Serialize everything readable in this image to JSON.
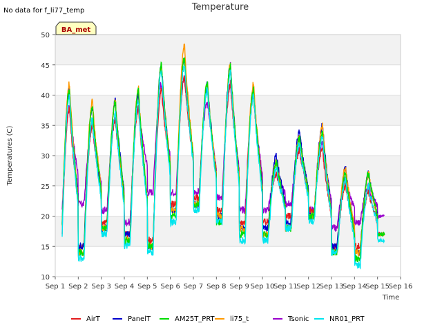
{
  "no_data_note": "No data for f_li77_temp",
  "badge": "BA_met",
  "chart_data": {
    "type": "line",
    "title": "Temperature",
    "xlabel": "Time",
    "ylabel": "Temperatures (C)",
    "ylim": [
      10,
      50
    ],
    "xlim": [
      1,
      16
    ],
    "yticks": [
      10,
      15,
      20,
      25,
      30,
      35,
      40,
      45,
      50
    ],
    "xticks": [
      "Sep 1",
      "Sep 2",
      "Sep 3",
      "Sep 4",
      "Sep 5",
      "Sep 6",
      "Sep 7",
      "Sep 8",
      "Sep 9",
      "Sep 10",
      "Sep 11",
      "Sep 12",
      "Sep 13",
      "Sep 14",
      "Sep 15",
      "Sep 16"
    ],
    "grid": true,
    "legend_position": "bottom",
    "days": {
      "min": [
        12,
        14,
        18,
        16,
        15,
        20,
        22,
        19,
        17,
        17,
        18,
        20,
        14,
        13,
        17
      ],
      "max": [
        40,
        38,
        37,
        39,
        44,
        45,
        41,
        44,
        41,
        29,
        33,
        34,
        27,
        26,
        17
      ]
    },
    "series": [
      {
        "name": "AirT",
        "color": "#e31a1c",
        "min": [
          12,
          15,
          19,
          17,
          16,
          22,
          23,
          21,
          19,
          19,
          20,
          21,
          15,
          15,
          17
        ],
        "max": [
          38,
          35,
          36,
          38,
          41,
          43,
          41,
          42,
          40,
          27,
          31,
          31,
          25,
          24,
          17
        ]
      },
      {
        "name": "PanelT",
        "color": "#0000cc",
        "min": [
          13,
          15,
          18,
          17,
          15,
          21,
          22,
          20,
          18,
          18,
          19,
          20,
          15,
          14,
          17
        ],
        "max": [
          41,
          38,
          39,
          40,
          45,
          46,
          42,
          45,
          41,
          30,
          34,
          35,
          28,
          27,
          17
        ]
      },
      {
        "name": "AM25T_PRT",
        "color": "#00dd00",
        "min": [
          12,
          14,
          18,
          16,
          15,
          20,
          22,
          19,
          17,
          17,
          18,
          20,
          14,
          13,
          17
        ],
        "max": [
          41,
          38,
          39,
          41,
          45,
          46,
          42,
          45,
          41,
          29,
          33,
          34,
          27,
          27,
          17
        ]
      },
      {
        "name": "li75_t",
        "color": "#ff9900",
        "min": [
          12,
          14,
          18,
          16,
          15,
          21,
          22,
          20,
          18,
          17,
          18,
          20,
          14,
          14,
          17
        ],
        "max": [
          42,
          39,
          39,
          41,
          45,
          48,
          42,
          45,
          42,
          29,
          33,
          35,
          28,
          27,
          17
        ]
      },
      {
        "name": "Tsonic",
        "color": "#9900cc",
        "min": [
          16,
          22,
          21,
          19,
          24,
          24,
          24,
          23,
          21,
          21,
          22,
          21,
          18,
          19,
          20
        ],
        "max": [
          38,
          35,
          36,
          38,
          42,
          43,
          39,
          42,
          40,
          27,
          31,
          32,
          26,
          25,
          20
        ]
      },
      {
        "name": "NR01_PRT",
        "color": "#00e5ee",
        "min": [
          11,
          13,
          17,
          15,
          14,
          19,
          21,
          19,
          16,
          16,
          18,
          19,
          14,
          12,
          16
        ],
        "max": [
          40,
          36,
          37,
          39,
          44,
          45,
          41,
          44,
          40,
          28,
          32,
          33,
          26,
          25,
          16
        ]
      }
    ]
  }
}
